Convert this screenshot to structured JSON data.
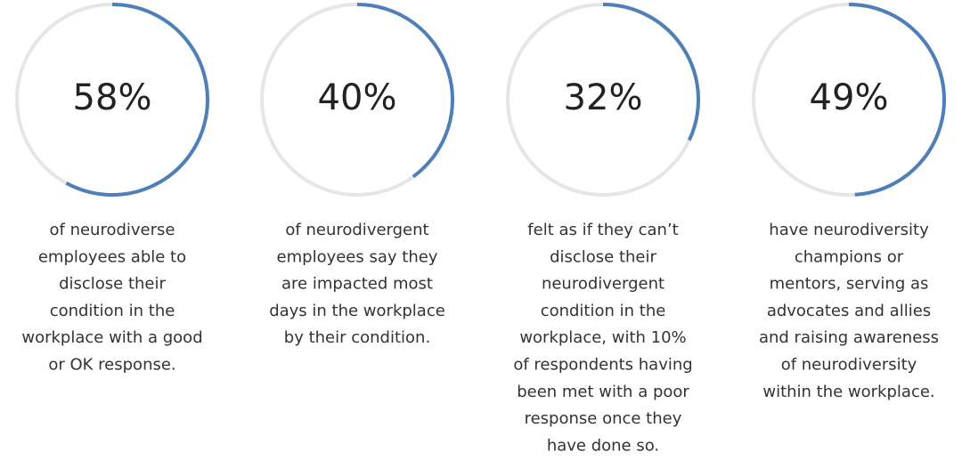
{
  "chart_data": [
    {
      "type": "gauge",
      "values": [
        58
      ],
      "value_labels": [
        "58%"
      ],
      "ylim": [
        0,
        100
      ],
      "color": "#4f7fb8",
      "caption": [
        "of neurodiverse",
        "employees able to",
        "disclose their",
        "condition in the",
        "workplace with a good",
        "or OK response."
      ]
    },
    {
      "type": "gauge",
      "values": [
        40
      ],
      "value_labels": [
        "40%"
      ],
      "ylim": [
        0,
        100
      ],
      "color": "#4f7fb8",
      "caption": [
        "of neurodivergent",
        "employees say they",
        "are impacted most",
        "days in the workplace",
        "by their condition."
      ]
    },
    {
      "type": "gauge",
      "values": [
        32
      ],
      "value_labels": [
        "32%"
      ],
      "ylim": [
        0,
        100
      ],
      "color": "#4f7fb8",
      "caption": [
        "felt as if they can’t",
        "disclose their",
        "neurodivergent",
        "condition in the",
        "workplace, with 10%",
        "of respondents having",
        "been met with a poor",
        "response once they",
        "have done so."
      ]
    },
    {
      "type": "gauge",
      "values": [
        49
      ],
      "value_labels": [
        "49%"
      ],
      "ylim": [
        0,
        100
      ],
      "color": "#4f7fb8",
      "caption": [
        "have neurodiversity",
        "champions or",
        "mentors, serving as",
        "advocates and allies",
        "and raising awareness",
        "of neurodiversity",
        "within the workplace."
      ]
    }
  ]
}
